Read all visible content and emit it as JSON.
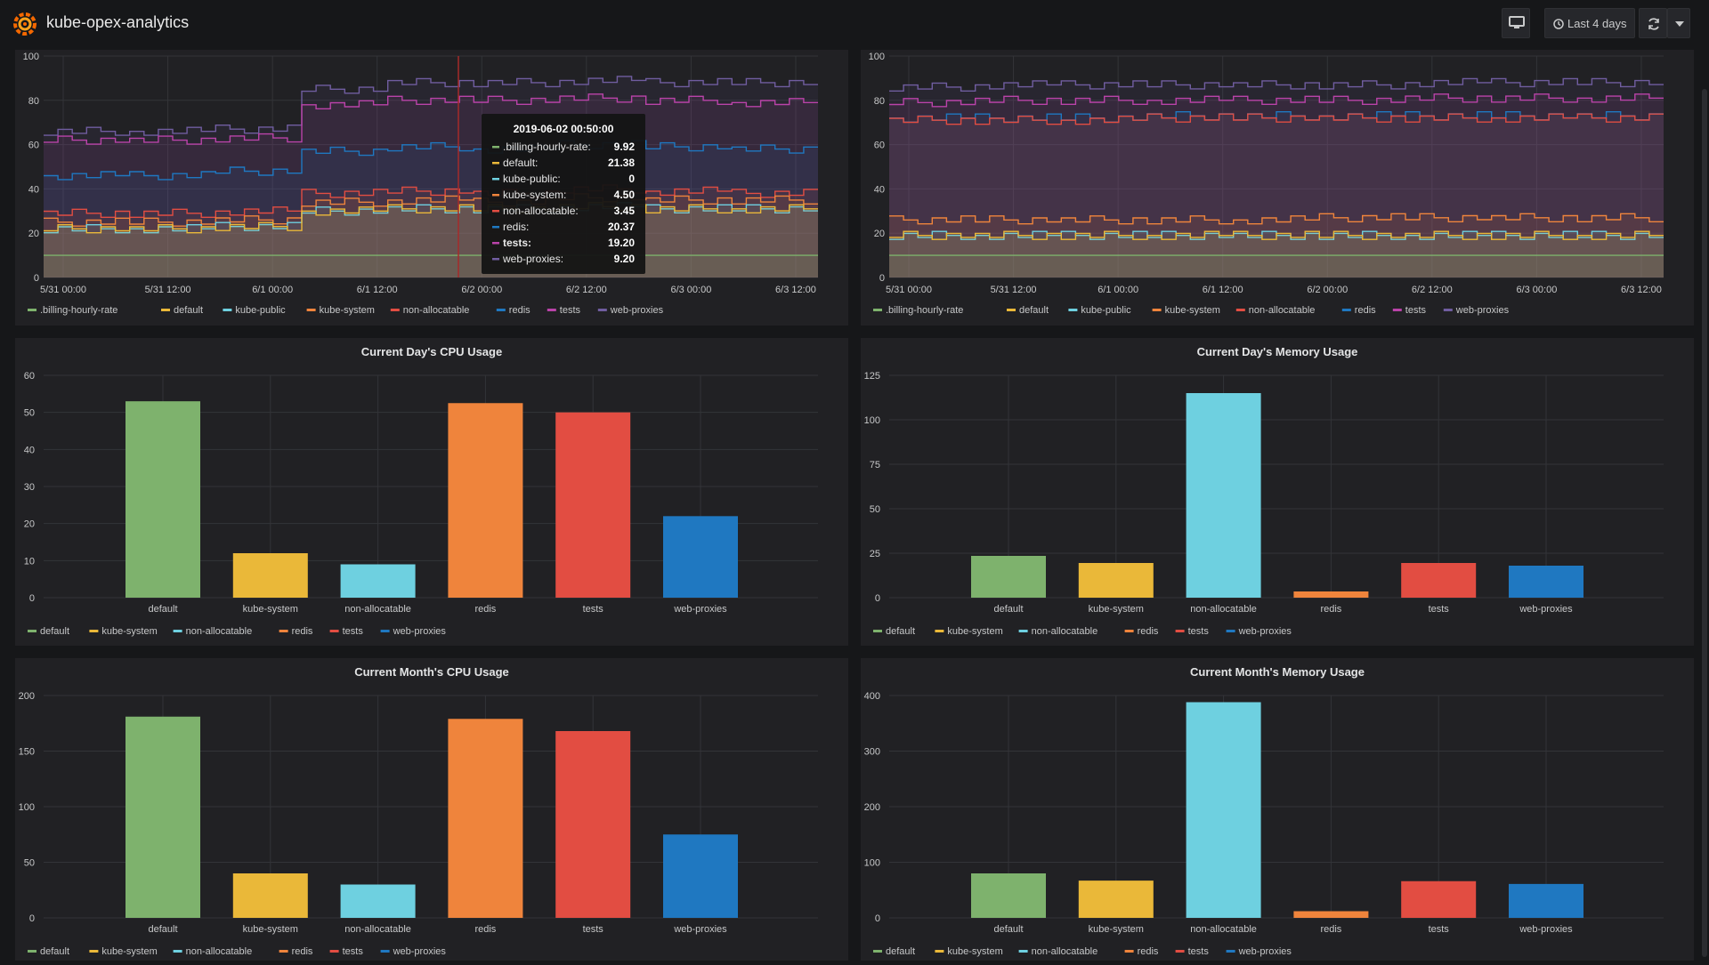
{
  "app": {
    "title": "kube-opex-analytics"
  },
  "toolbar": {
    "time_range_label": "Last 4 days",
    "tv_icon": "monitor-icon",
    "clock_icon": "clock-icon",
    "refresh_icon": "refresh-icon",
    "dropdown_icon": "chevron-down-icon"
  },
  "colors": {
    ".billing-hourly-rate": "#7eb26d",
    "default": "#eab839",
    "kube-public": "#6ed0e0",
    "kube-system": "#ef843c",
    "non-allocatable": "#e24d42",
    "redis": "#1f78c1",
    "tests": "#ba43a9",
    "web-proxies": "#705da0"
  },
  "bar_colors": [
    "#7eb26d",
    "#eab839",
    "#6ed0e0",
    "#ef843c",
    "#e24d42",
    "#1f78c1"
  ],
  "tooltip": {
    "time": "2019-06-02 00:50:00",
    "rows": [
      {
        "name": ".billing-hourly-rate:",
        "value": "9.92",
        "color": "#7eb26d",
        "bold": false
      },
      {
        "name": "default:",
        "value": "21.38",
        "color": "#eab839",
        "bold": false
      },
      {
        "name": "kube-public:",
        "value": "0",
        "color": "#6ed0e0",
        "bold": false
      },
      {
        "name": "kube-system:",
        "value": "4.50",
        "color": "#ef843c",
        "bold": false
      },
      {
        "name": "non-allocatable:",
        "value": "3.45",
        "color": "#e24d42",
        "bold": false
      },
      {
        "name": "redis:",
        "value": "20.37",
        "color": "#1f78c1",
        "bold": false
      },
      {
        "name": "tests:",
        "value": "19.20",
        "color": "#ba43a9",
        "bold": true
      },
      {
        "name": "web-proxies:",
        "value": "9.20",
        "color": "#705da0",
        "bold": false
      }
    ]
  },
  "chart_data": [
    {
      "type": "area",
      "stacked": true,
      "title": "",
      "x_ticks": [
        "5/31 00:00",
        "5/31 12:00",
        "6/1 00:00",
        "6/1 12:00",
        "6/2 00:00",
        "6/2 12:00",
        "6/3 00:00",
        "6/3 12:00"
      ],
      "ylim": [
        0,
        100
      ],
      "y_ticks": [
        "0",
        "20",
        "40",
        "60",
        "80",
        "100"
      ],
      "series": [
        {
          "name": ".billing-hourly-rate",
          "values": [
            10,
            10,
            10,
            10,
            10,
            10,
            10,
            10,
            10
          ]
        },
        {
          "name": "default",
          "values": [
            22,
            22,
            23,
            30,
            31,
            31,
            32,
            31,
            31
          ]
        },
        {
          "name": "kube-public",
          "values": [
            22,
            22,
            23,
            30,
            31,
            31,
            32,
            31,
            31
          ]
        },
        {
          "name": "kube-system",
          "values": [
            25,
            25,
            26,
            34,
            35,
            34,
            36,
            35,
            35
          ]
        },
        {
          "name": "non-allocatable",
          "values": [
            29,
            29,
            30,
            38,
            39,
            38,
            40,
            39,
            38
          ]
        },
        {
          "name": "redis",
          "values": [
            46,
            46,
            48,
            57,
            59,
            58,
            60,
            59,
            58
          ]
        },
        {
          "name": "tests",
          "values": [
            62,
            62,
            63,
            78,
            80,
            80,
            81,
            80,
            79
          ]
        },
        {
          "name": "web-proxies",
          "values": [
            66,
            66,
            67,
            85,
            88,
            88,
            89,
            88,
            88
          ]
        }
      ],
      "legend": [
        ".billing-hourly-rate",
        "default",
        "kube-public",
        "kube-system",
        "non-allocatable",
        "redis",
        "tests",
        "web-proxies"
      ]
    },
    {
      "type": "area",
      "stacked": true,
      "title": "",
      "x_ticks": [
        "5/31 00:00",
        "5/31 12:00",
        "6/1 00:00",
        "6/1 12:00",
        "6/2 00:00",
        "6/2 12:00",
        "6/3 00:00",
        "6/3 12:00"
      ],
      "ylim": [
        0,
        100
      ],
      "y_ticks": [
        "0",
        "20",
        "40",
        "60",
        "80",
        "100"
      ],
      "series": [
        {
          "name": ".billing-hourly-rate",
          "values": [
            10,
            10,
            10,
            10,
            10,
            10,
            10,
            10,
            10
          ]
        },
        {
          "name": "default",
          "values": [
            19,
            19,
            19,
            19,
            19,
            19,
            19,
            19,
            19
          ]
        },
        {
          "name": "kube-public",
          "values": [
            19,
            19,
            19,
            19,
            19,
            19,
            19,
            19,
            19
          ]
        },
        {
          "name": "kube-system",
          "values": [
            26,
            26,
            26,
            26,
            26,
            27,
            27,
            27,
            27
          ]
        },
        {
          "name": "non-allocatable",
          "values": [
            71,
            71,
            71,
            72,
            72,
            72,
            72,
            72,
            72
          ]
        },
        {
          "name": "redis",
          "values": [
            72,
            72,
            72,
            73,
            73,
            73,
            73,
            73,
            73
          ]
        },
        {
          "name": "tests",
          "values": [
            79,
            80,
            80,
            80,
            80,
            80,
            81,
            81,
            81
          ]
        },
        {
          "name": "web-proxies",
          "values": [
            86,
            87,
            87,
            87,
            87,
            87,
            88,
            88,
            88
          ]
        }
      ],
      "legend": [
        ".billing-hourly-rate",
        "default",
        "kube-public",
        "kube-system",
        "non-allocatable",
        "redis",
        "tests",
        "web-proxies"
      ]
    },
    {
      "type": "bar",
      "title": "Current Day's CPU Usage",
      "categories": [
        "default",
        "kube-system",
        "non-allocatable",
        "redis",
        "tests",
        "web-proxies"
      ],
      "values": [
        53,
        12,
        9,
        52.5,
        50,
        22
      ],
      "ylim": [
        0,
        60
      ],
      "y_ticks": [
        "0",
        "10",
        "20",
        "30",
        "40",
        "50",
        "60"
      ],
      "legend": [
        "default",
        "kube-system",
        "non-allocatable",
        "redis",
        "tests",
        "web-proxies"
      ]
    },
    {
      "type": "bar",
      "title": "Current Day's Memory Usage",
      "categories": [
        "default",
        "kube-system",
        "non-allocatable",
        "redis",
        "tests",
        "web-proxies"
      ],
      "values": [
        23.5,
        19.5,
        115,
        3.5,
        19.5,
        18
      ],
      "ylim": [
        0,
        125
      ],
      "y_ticks": [
        "0",
        "25",
        "50",
        "75",
        "100",
        "125"
      ],
      "legend": [
        "default",
        "kube-system",
        "non-allocatable",
        "redis",
        "tests",
        "web-proxies"
      ]
    },
    {
      "type": "bar",
      "title": "Current Month's CPU Usage",
      "categories": [
        "default",
        "kube-system",
        "non-allocatable",
        "redis",
        "tests",
        "web-proxies"
      ],
      "values": [
        181,
        40,
        30,
        179,
        168,
        75
      ],
      "ylim": [
        0,
        200
      ],
      "y_ticks": [
        "0",
        "50",
        "100",
        "150",
        "200"
      ],
      "legend": [
        "default",
        "kube-system",
        "non-allocatable",
        "redis",
        "tests",
        "web-proxies"
      ]
    },
    {
      "type": "bar",
      "title": "Current Month's Memory Usage",
      "categories": [
        "default",
        "kube-system",
        "non-allocatable",
        "redis",
        "tests",
        "web-proxies"
      ],
      "values": [
        80,
        67,
        388,
        12,
        66,
        61
      ],
      "ylim": [
        0,
        400
      ],
      "y_ticks": [
        "0",
        "100",
        "200",
        "300",
        "400"
      ],
      "legend": [
        "default",
        "kube-system",
        "non-allocatable",
        "redis",
        "tests",
        "web-proxies"
      ]
    }
  ]
}
